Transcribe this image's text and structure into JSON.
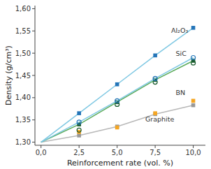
{
  "chart_data": {
    "type": "line",
    "x": [
      0.0,
      2.5,
      5.0,
      7.5,
      10.0
    ],
    "series": [
      {
        "type": "line",
        "color": "#b8b8b8",
        "values": [
          1.3,
          1.315,
          1.335,
          1.363,
          1.383
        ]
      },
      {
        "type": "scatter",
        "marker": "square",
        "color": "#999999",
        "values": [
          null,
          1.315,
          1.335,
          1.363,
          1.383
        ]
      },
      {
        "type": "scatter",
        "marker": "square",
        "color": "#f5a623",
        "values": [
          null,
          1.323,
          1.333,
          1.365,
          1.393
        ]
      },
      {
        "type": "scatter",
        "marker": "circle-open",
        "color": "#1a5c2e",
        "values": [
          null,
          1.327,
          1.385,
          1.435,
          1.478
        ]
      },
      {
        "type": "line",
        "color": "#5aaa5a",
        "values": [
          1.3,
          1.34,
          1.39,
          1.44,
          1.483
        ]
      },
      {
        "type": "scatter",
        "marker": "square",
        "color": "#1a5c2e",
        "values": [
          null,
          1.34,
          1.39,
          1.44,
          1.483
        ]
      },
      {
        "type": "line",
        "color": "#7ec8e3",
        "values": [
          1.3,
          1.345,
          1.393,
          1.443,
          1.49
        ]
      },
      {
        "type": "scatter",
        "marker": "circle-open",
        "color": "#2475b8",
        "values": [
          null,
          1.345,
          1.393,
          1.443,
          1.49
        ]
      },
      {
        "type": "line",
        "color": "#7ec8e3",
        "values": [
          1.3,
          1.365,
          1.43,
          1.495,
          1.557
        ]
      },
      {
        "type": "scatter",
        "marker": "square",
        "color": "#2475b8",
        "values": [
          null,
          1.365,
          1.43,
          1.495,
          1.557
        ]
      }
    ],
    "annotations": [
      {
        "x": 8.55,
        "y": 1.552,
        "text": "Al₂O₃"
      },
      {
        "x": 8.85,
        "y": 1.499,
        "text": "SiC"
      },
      {
        "x": 8.85,
        "y": 1.412,
        "text": "BN"
      },
      {
        "x": 6.85,
        "y": 1.352,
        "text": "Graphite"
      }
    ],
    "x_label": "Reinforcement rate (vol. %)",
    "y_label": "Density (g/cm³)",
    "xlim": [
      -0.4,
      10.8
    ],
    "ylim": [
      1.293,
      1.607
    ],
    "xticks": [
      {
        "value": 0.0,
        "label": "0,0"
      },
      {
        "value": 2.5,
        "label": "2,5"
      },
      {
        "value": 5.0,
        "label": "5,0"
      },
      {
        "value": 7.5,
        "label": "7,5"
      },
      {
        "value": 10.0,
        "label": "10,0"
      }
    ],
    "yticks": [
      {
        "value": 1.3,
        "label": "1,30"
      },
      {
        "value": 1.35,
        "label": "1,35"
      },
      {
        "value": 1.4,
        "label": "1,40"
      },
      {
        "value": 1.45,
        "label": "1,45"
      },
      {
        "value": 1.5,
        "label": "1,50"
      },
      {
        "value": 1.55,
        "label": "1,55"
      },
      {
        "value": 1.6,
        "label": "1,60"
      }
    ]
  }
}
